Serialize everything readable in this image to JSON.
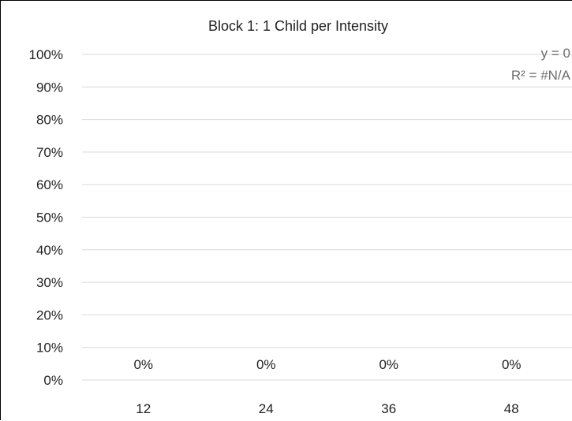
{
  "chart_data": {
    "type": "bar",
    "title": "Block 1: 1 Child per Intensity",
    "categories": [
      "12",
      "24",
      "36",
      "48"
    ],
    "values": [
      0,
      0,
      0,
      0
    ],
    "data_labels": [
      "0%",
      "0%",
      "0%",
      "0%"
    ],
    "ylim": [
      0,
      1
    ],
    "y_ticks": [
      "0%",
      "10%",
      "20%",
      "30%",
      "40%",
      "50%",
      "60%",
      "70%",
      "80%",
      "90%",
      "100%"
    ],
    "xlabel": "",
    "ylabel": "",
    "grid": true,
    "trendline": {
      "equation": "y = 0",
      "r_squared": "R² = #N/A",
      "color": "#6e6e6e"
    },
    "colors": {
      "gridline": "#d9d9d9",
      "text": "#222222"
    }
  }
}
